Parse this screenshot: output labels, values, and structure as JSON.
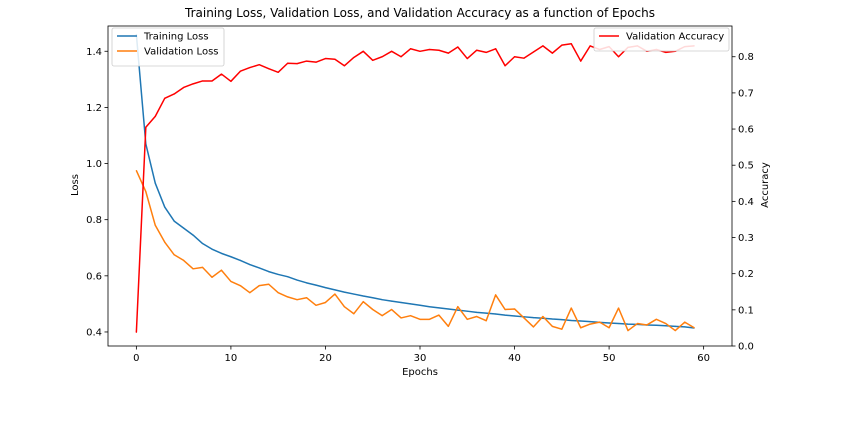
{
  "chart_data": {
    "type": "line",
    "title": "Training Loss, Validation Loss, and Validation Accuracy as a function of Epochs",
    "xlabel": "Epochs",
    "ylabel_left": "Loss",
    "ylabel_right": "Accuracy",
    "xlim": [
      -3,
      63
    ],
    "ylim_left": [
      0.35,
      1.49
    ],
    "ylim_right": [
      0.0,
      0.885
    ],
    "x_ticks": [
      0,
      10,
      20,
      30,
      40,
      50,
      60
    ],
    "y_ticks_left": [
      0.4,
      0.6,
      0.8,
      1.0,
      1.2,
      1.4
    ],
    "y_ticks_right": [
      0.0,
      0.1,
      0.2,
      0.3,
      0.4,
      0.5,
      0.6,
      0.7,
      0.8
    ],
    "grid": false,
    "legend_left_placement": "upper left",
    "legend_right_placement": "upper right",
    "x": [
      0,
      1,
      2,
      3,
      4,
      5,
      6,
      7,
      8,
      9,
      10,
      11,
      12,
      13,
      14,
      15,
      16,
      17,
      18,
      19,
      20,
      21,
      22,
      23,
      24,
      25,
      26,
      27,
      28,
      29,
      30,
      31,
      32,
      33,
      34,
      35,
      36,
      37,
      38,
      39,
      40,
      41,
      42,
      43,
      44,
      45,
      46,
      47,
      48,
      49,
      50,
      51,
      52,
      53,
      54,
      55,
      56,
      57,
      58,
      59
    ],
    "series": [
      {
        "name": "Training Loss",
        "axis": "left",
        "color": "#1f77b4",
        "values": [
          1.46,
          1.07,
          0.93,
          0.845,
          0.795,
          0.77,
          0.745,
          0.715,
          0.695,
          0.68,
          0.668,
          0.655,
          0.64,
          0.628,
          0.615,
          0.605,
          0.597,
          0.585,
          0.575,
          0.567,
          0.558,
          0.55,
          0.542,
          0.535,
          0.528,
          0.522,
          0.515,
          0.51,
          0.505,
          0.5,
          0.495,
          0.49,
          0.486,
          0.482,
          0.478,
          0.474,
          0.47,
          0.467,
          0.464,
          0.46,
          0.457,
          0.454,
          0.451,
          0.449,
          0.446,
          0.444,
          0.441,
          0.439,
          0.437,
          0.434,
          0.432,
          0.43,
          0.428,
          0.427,
          0.425,
          0.424,
          0.422,
          0.42,
          0.418,
          0.414
        ]
      },
      {
        "name": "Validation Loss",
        "axis": "left",
        "color": "#ff7f0e",
        "values": [
          0.975,
          0.9,
          0.78,
          0.72,
          0.675,
          0.655,
          0.625,
          0.63,
          0.595,
          0.62,
          0.58,
          0.565,
          0.54,
          0.565,
          0.57,
          0.54,
          0.525,
          0.515,
          0.522,
          0.495,
          0.505,
          0.535,
          0.49,
          0.465,
          0.508,
          0.48,
          0.458,
          0.48,
          0.45,
          0.458,
          0.445,
          0.445,
          0.46,
          0.42,
          0.49,
          0.445,
          0.455,
          0.44,
          0.532,
          0.48,
          0.482,
          0.45,
          0.418,
          0.455,
          0.42,
          0.41,
          0.485,
          0.415,
          0.428,
          0.435,
          0.415,
          0.485,
          0.405,
          0.43,
          0.425,
          0.445,
          0.43,
          0.405,
          0.435,
          0.415
        ]
      },
      {
        "name": "Validation Accuracy",
        "axis": "right",
        "color": "#ff0000",
        "values": [
          0.038,
          0.605,
          0.635,
          0.685,
          0.697,
          0.715,
          0.725,
          0.733,
          0.733,
          0.752,
          0.732,
          0.76,
          0.77,
          0.778,
          0.767,
          0.757,
          0.782,
          0.781,
          0.788,
          0.785,
          0.795,
          0.793,
          0.775,
          0.798,
          0.815,
          0.79,
          0.8,
          0.815,
          0.8,
          0.822,
          0.815,
          0.82,
          0.818,
          0.81,
          0.827,
          0.795,
          0.818,
          0.812,
          0.822,
          0.775,
          0.8,
          0.796,
          0.813,
          0.83,
          0.81,
          0.832,
          0.836,
          0.788,
          0.83,
          0.82,
          0.828,
          0.8,
          0.826,
          0.83,
          0.815,
          0.82,
          0.812,
          0.815,
          0.828,
          0.83
        ]
      }
    ]
  }
}
